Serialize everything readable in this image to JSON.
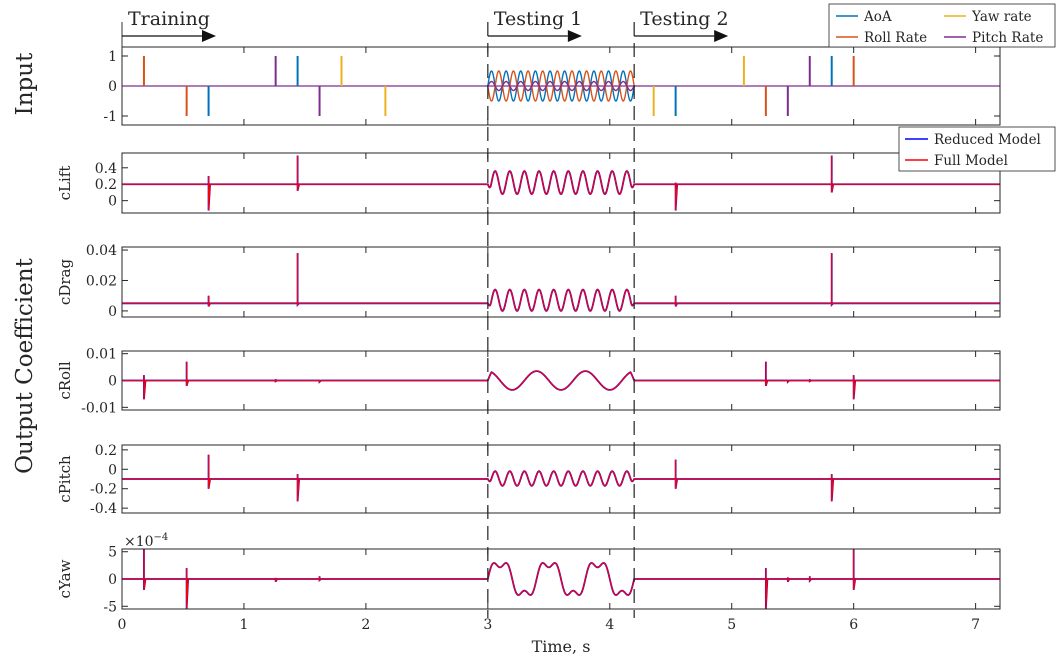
{
  "figure": {
    "x_label": "Time, s",
    "x_ticks": [
      0,
      1,
      2,
      3,
      4,
      5,
      6,
      7
    ],
    "xlim": [
      0,
      7.2
    ],
    "group_labels": {
      "input": "Input",
      "output": "Output Coefficient"
    },
    "phases": [
      {
        "label": "Training",
        "start": 0
      },
      {
        "label": "Testing 1",
        "start": 3
      },
      {
        "label": "Testing 2",
        "start": 4.2
      }
    ],
    "phase_boundaries": [
      3,
      4.2
    ],
    "input_legend": [
      "AoA",
      "Roll Rate",
      "Yaw rate",
      "Pitch Rate"
    ],
    "output_legend": [
      "Reduced Model",
      "Full Model"
    ],
    "colors": {
      "AoA": "#0072BD",
      "Roll Rate": "#D95319",
      "Yaw rate": "#EDB120",
      "Pitch Rate": "#7E2F8E",
      "Reduced Model": "#0000ff",
      "Full Model": "#ff0000",
      "axis": "#262626"
    }
  },
  "chart_data": [
    {
      "type": "line",
      "id": "input",
      "ylabel": "",
      "ylim": [
        -1.3,
        1.3
      ],
      "y_ticks": [
        {
          "v": 1,
          "t": "1"
        },
        {
          "v": 0,
          "t": "0"
        },
        {
          "v": -1,
          "t": "-1"
        }
      ],
      "impulses": [
        {
          "series": "Roll Rate",
          "t": 0.18,
          "v": 1
        },
        {
          "series": "Roll Rate",
          "t": 0.53,
          "v": -1
        },
        {
          "series": "AoA",
          "t": 0.71,
          "v": -1
        },
        {
          "series": "Pitch Rate",
          "t": 1.26,
          "v": 1
        },
        {
          "series": "AoA",
          "t": 1.44,
          "v": 1
        },
        {
          "series": "Pitch Rate",
          "t": 1.62,
          "v": -1
        },
        {
          "series": "Yaw rate",
          "t": 1.8,
          "v": 1
        },
        {
          "series": "Yaw rate",
          "t": 2.16,
          "v": -1
        },
        {
          "series": "Yaw rate",
          "t": 4.36,
          "v": -1
        },
        {
          "series": "AoA",
          "t": 4.54,
          "v": -1
        },
        {
          "series": "Yaw rate",
          "t": 5.1,
          "v": 1
        },
        {
          "series": "Roll Rate",
          "t": 5.28,
          "v": -1
        },
        {
          "series": "Pitch Rate",
          "t": 5.46,
          "v": -1
        },
        {
          "series": "Pitch Rate",
          "t": 5.64,
          "v": 1
        },
        {
          "series": "AoA",
          "t": 5.82,
          "v": 1
        },
        {
          "series": "Roll Rate",
          "t": 6.0,
          "v": 1
        }
      ],
      "sinusoids": [
        {
          "series": "AoA",
          "amplitude": 0.5,
          "cycles": 10,
          "phase_deg": 0
        },
        {
          "series": "Roll Rate",
          "amplitude": 0.5,
          "cycles": 10,
          "phase_deg": 180
        },
        {
          "series": "Pitch Rate",
          "amplitude": 0.15,
          "cycles": 10,
          "phase_deg": 0
        }
      ]
    },
    {
      "type": "line",
      "id": "cLift",
      "ylabel": "cLift",
      "ylim": [
        -0.15,
        0.58
      ],
      "y_ticks": [
        {
          "v": 0.4,
          "t": "0.4"
        },
        {
          "v": 0.2,
          "t": "0.2"
        },
        {
          "v": 0,
          "t": "0"
        }
      ],
      "baseline": 0.2,
      "osc": {
        "cycles": 10,
        "lo": 0.08,
        "hi": 0.36
      },
      "spikes": [
        {
          "t": 0.71,
          "up": 0.3,
          "down": -0.12
        },
        {
          "t": 1.44,
          "up": 0.55,
          "down": 0.12
        },
        {
          "t": 4.54,
          "up": 0.22,
          "down": -0.12
        },
        {
          "t": 5.82,
          "up": 0.55,
          "down": 0.1
        }
      ]
    },
    {
      "type": "line",
      "id": "cDrag",
      "ylabel": "cDrag",
      "ylim": [
        -0.004,
        0.042
      ],
      "y_ticks": [
        {
          "v": 0.04,
          "t": "0.04"
        },
        {
          "v": 0.02,
          "t": "0.02"
        },
        {
          "v": 0,
          "t": "0"
        }
      ],
      "baseline": 0.005,
      "osc": {
        "cycles": 10,
        "lo": 0.0,
        "hi": 0.014
      },
      "spikes": [
        {
          "t": 0.71,
          "up": 0.01,
          "down": 0.003
        },
        {
          "t": 1.44,
          "up": 0.038,
          "down": 0.004
        },
        {
          "t": 4.54,
          "up": 0.01,
          "down": 0.003
        },
        {
          "t": 5.82,
          "up": 0.038,
          "down": 0.004
        }
      ]
    },
    {
      "type": "line",
      "id": "cRoll",
      "ylabel": "cRoll",
      "ylim": [
        -0.011,
        0.011
      ],
      "y_ticks": [
        {
          "v": 0.01,
          "t": "0.01"
        },
        {
          "v": 0,
          "t": "0"
        },
        {
          "v": -0.01,
          "t": "-0.01"
        }
      ],
      "baseline": 0,
      "osc": {
        "cycles": 3,
        "lo": -0.0035,
        "hi": 0.0035,
        "phase_deg": 180
      },
      "spikes": [
        {
          "t": 0.18,
          "up": 0.002,
          "down": -0.007
        },
        {
          "t": 0.53,
          "up": 0.007,
          "down": -0.002
        },
        {
          "t": 1.26,
          "up": 0.0005,
          "down": -0.0003
        },
        {
          "t": 1.62,
          "up": 0.0003,
          "down": -0.0005
        },
        {
          "t": 5.28,
          "up": 0.007,
          "down": -0.002
        },
        {
          "t": 5.46,
          "up": 0.0003,
          "down": -0.0005
        },
        {
          "t": 5.64,
          "up": 0.0005,
          "down": -0.0003
        },
        {
          "t": 6.0,
          "up": 0.002,
          "down": -0.007
        }
      ]
    },
    {
      "type": "line",
      "id": "cPitch",
      "ylabel": "cPitch",
      "ylim": [
        -0.45,
        0.25
      ],
      "y_ticks": [
        {
          "v": 0.2,
          "t": "0.2"
        },
        {
          "v": 0,
          "t": "0"
        },
        {
          "v": -0.2,
          "t": "-0.2"
        },
        {
          "v": -0.4,
          "t": "-0.4"
        }
      ],
      "baseline": -0.1,
      "osc": {
        "cycles": 10,
        "lo": -0.17,
        "hi": -0.02
      },
      "spikes": [
        {
          "t": 0.71,
          "up": 0.15,
          "down": -0.2
        },
        {
          "t": 1.44,
          "up": -0.05,
          "down": -0.33
        },
        {
          "t": 4.54,
          "up": 0.1,
          "down": -0.2
        },
        {
          "t": 5.82,
          "up": -0.05,
          "down": -0.33
        }
      ]
    },
    {
      "type": "line",
      "id": "cYaw",
      "ylabel": "cYaw",
      "y_scale_label": "×10",
      "y_scale_exponent": "−4",
      "ylim": [
        -0.00055,
        0.00055
      ],
      "y_ticks": [
        {
          "v": 0.0005,
          "t": "5"
        },
        {
          "v": 0,
          "t": "0"
        },
        {
          "v": -0.0005,
          "t": "-5"
        }
      ],
      "baseline": 0,
      "osc": {
        "cycles": 3,
        "amplitude": 0.00035,
        "harmonic3": 0.32
      },
      "spikes": [
        {
          "t": 0.18,
          "up": 0.00055,
          "down": -0.0002
        },
        {
          "t": 0.53,
          "up": 0.0002,
          "down": -0.00055
        },
        {
          "t": 1.26,
          "up": 2e-05,
          "down": -5e-05
        },
        {
          "t": 1.62,
          "up": 5e-05,
          "down": -2e-05
        },
        {
          "t": 5.28,
          "up": 0.0002,
          "down": -0.00055
        },
        {
          "t": 5.46,
          "up": 3e-05,
          "down": -5e-05
        },
        {
          "t": 5.64,
          "up": 5e-05,
          "down": -3e-05
        },
        {
          "t": 6.0,
          "up": 0.00055,
          "down": -0.0002
        }
      ]
    }
  ]
}
